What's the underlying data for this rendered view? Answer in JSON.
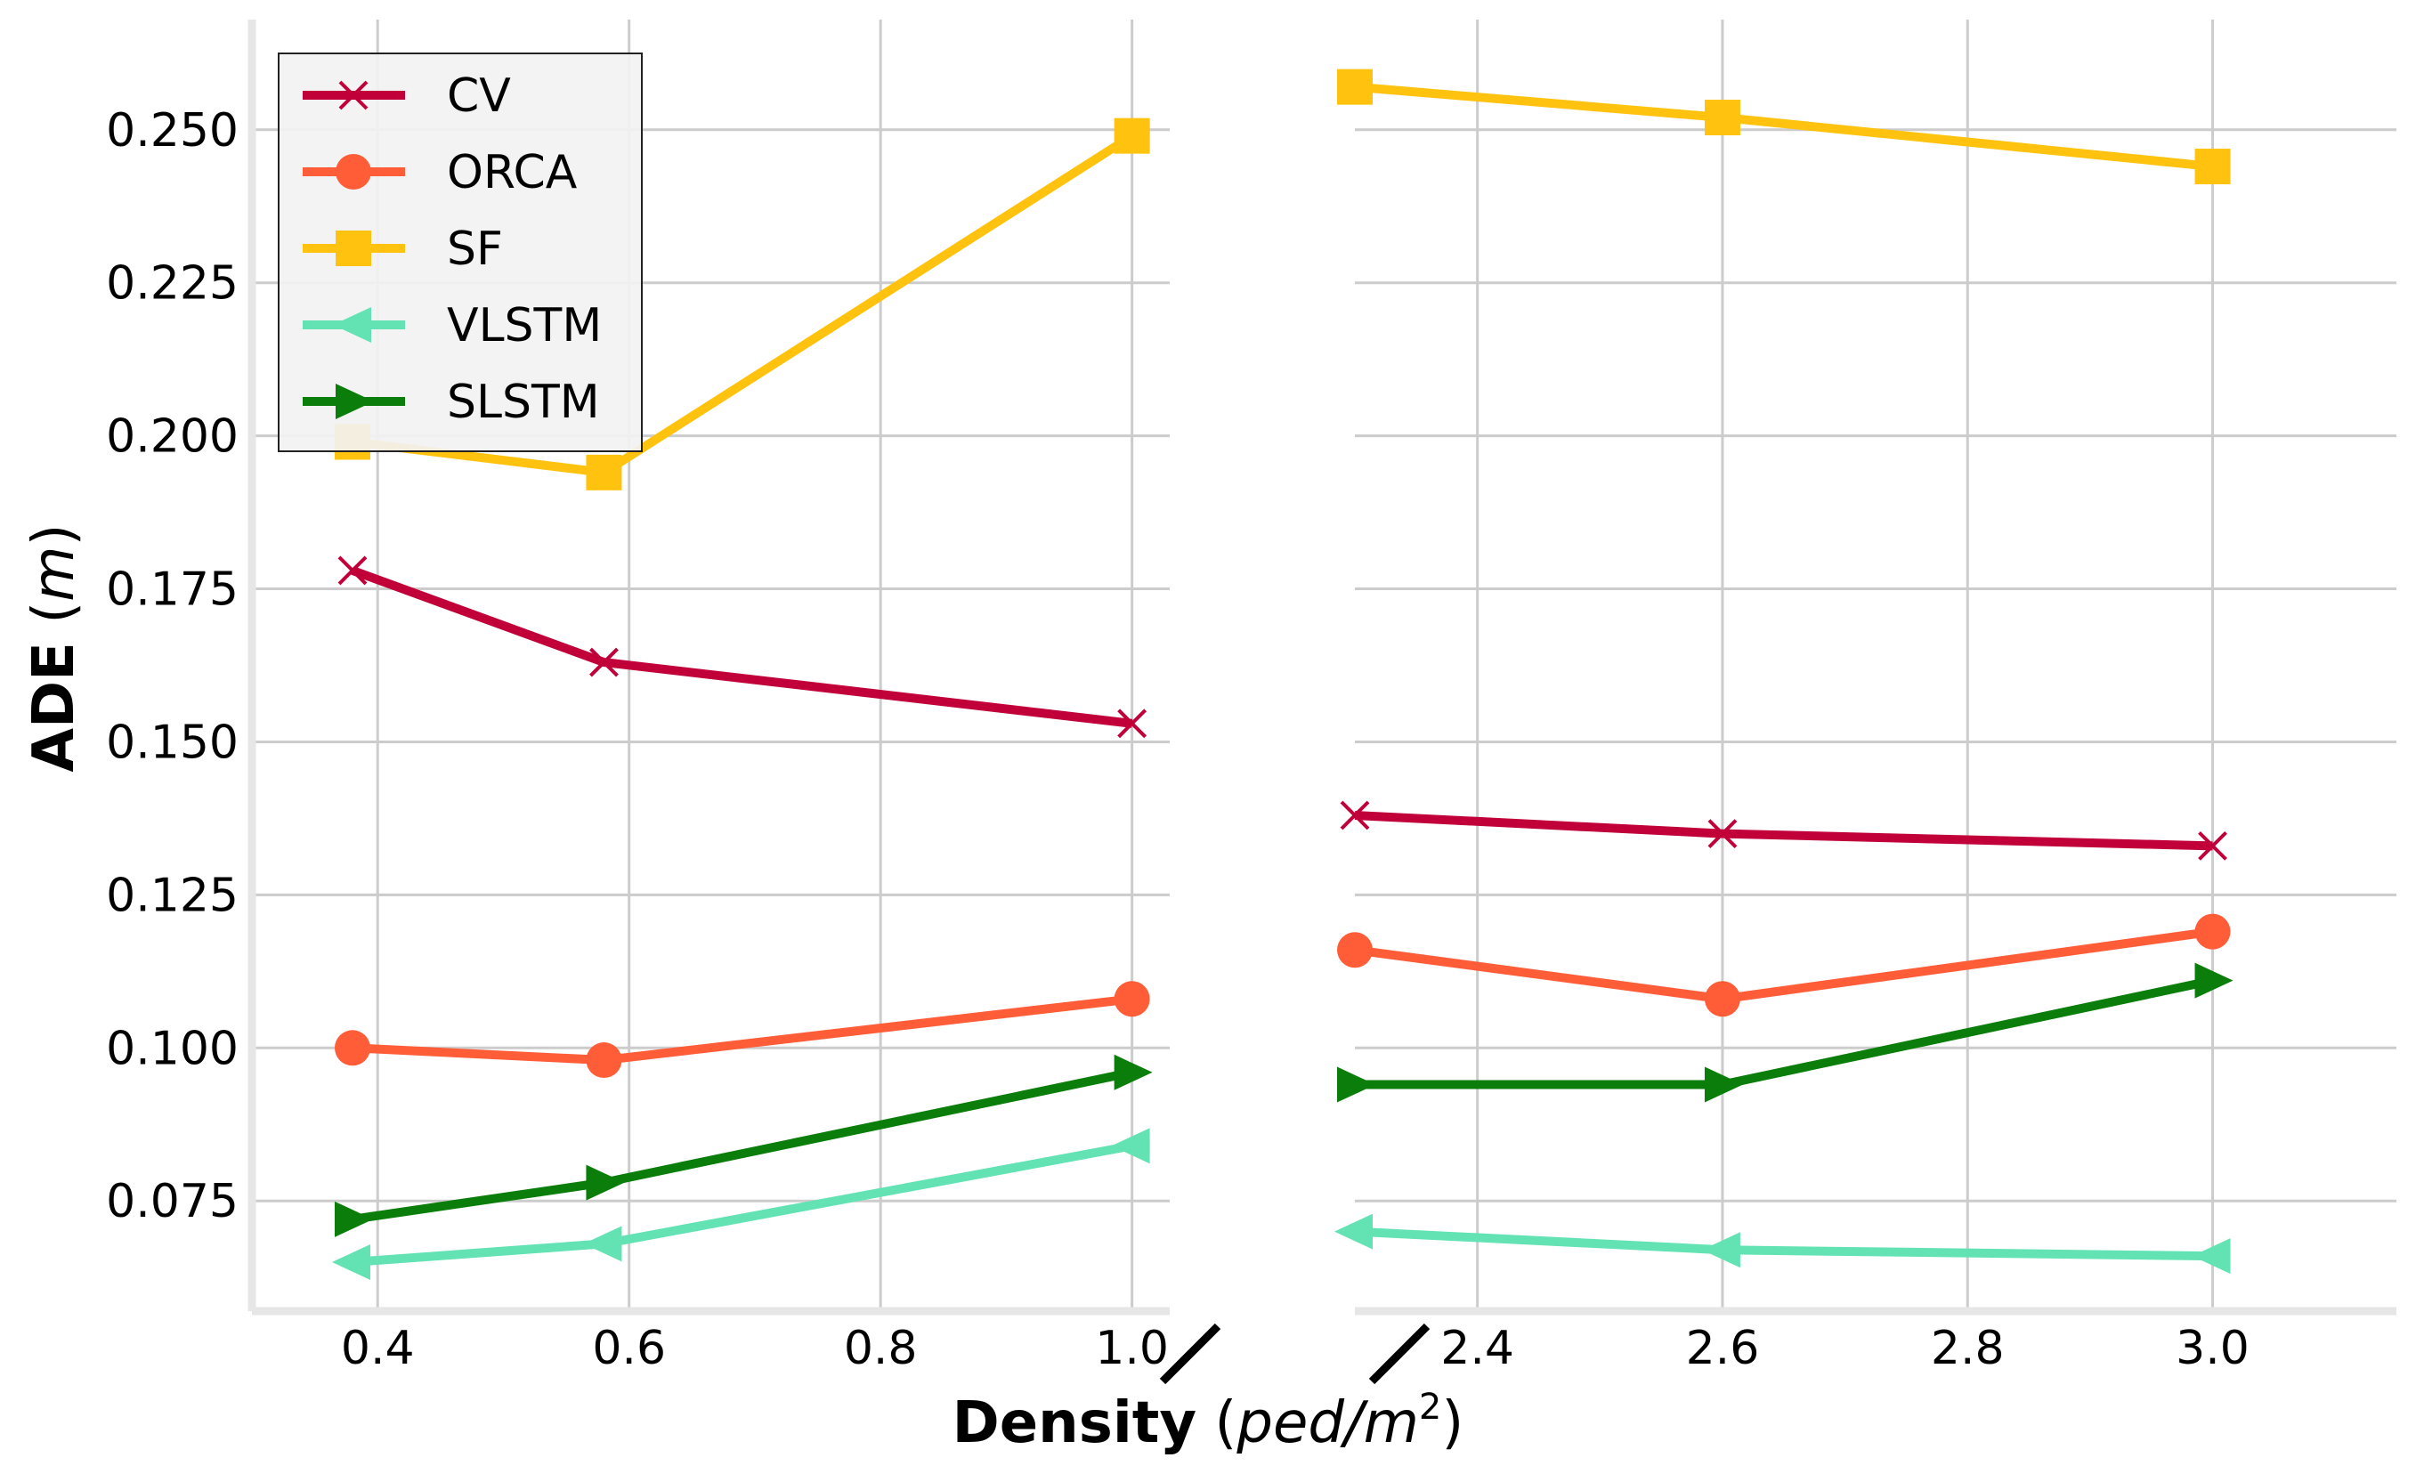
{
  "chart_data": {
    "type": "line",
    "xlabel": {
      "bold": "Density",
      "unit": "ped/m",
      "unit_sup": "2"
    },
    "ylabel": {
      "bold": "ADE",
      "unit": "m"
    },
    "broken_x_axis": true,
    "grid": true,
    "legend_position": "top-left",
    "ylim": [
      0.057,
      0.268
    ],
    "yticks": [
      0.075,
      0.1,
      0.125,
      0.15,
      0.175,
      0.2,
      0.225,
      0.25
    ],
    "ytick_labels": [
      "0.075",
      "0.100",
      "0.125",
      "0.150",
      "0.175",
      "0.200",
      "0.225",
      "0.250"
    ],
    "panels": [
      {
        "xlim": [
          0.3,
          1.03
        ],
        "xticks": [
          0.4,
          0.6,
          0.8,
          1.0
        ],
        "xtick_labels": [
          "0.4",
          "0.6",
          "0.8",
          "1.0"
        ]
      },
      {
        "xlim": [
          2.3,
          3.15
        ],
        "xticks": [
          2.4,
          2.6,
          2.8,
          3.0
        ],
        "xtick_labels": [
          "2.4",
          "2.6",
          "2.8",
          "3.0"
        ]
      }
    ],
    "x": [
      0.38,
      0.58,
      1.0,
      2.3,
      2.6,
      3.0
    ],
    "series": [
      {
        "name": "CV",
        "color": "#c1003a",
        "marker": "x",
        "values": [
          0.178,
          0.163,
          0.153,
          0.138,
          0.135,
          0.133
        ]
      },
      {
        "name": "ORCA",
        "color": "#ff5c38",
        "marker": "circle",
        "values": [
          0.1,
          0.098,
          0.108,
          0.116,
          0.108,
          0.119
        ]
      },
      {
        "name": "SF",
        "color": "#ffc30f",
        "marker": "square",
        "values": [
          0.199,
          0.194,
          0.249,
          0.257,
          0.252,
          0.244
        ]
      },
      {
        "name": "VLSTM",
        "color": "#63e3b3",
        "marker": "triangle-left",
        "values": [
          0.065,
          0.068,
          0.084,
          0.07,
          0.067,
          0.066
        ]
      },
      {
        "name": "SLSTM",
        "color": "#0a7d0a",
        "marker": "triangle-right",
        "values": [
          0.072,
          0.078,
          0.096,
          0.094,
          0.094,
          0.111
        ]
      }
    ]
  }
}
